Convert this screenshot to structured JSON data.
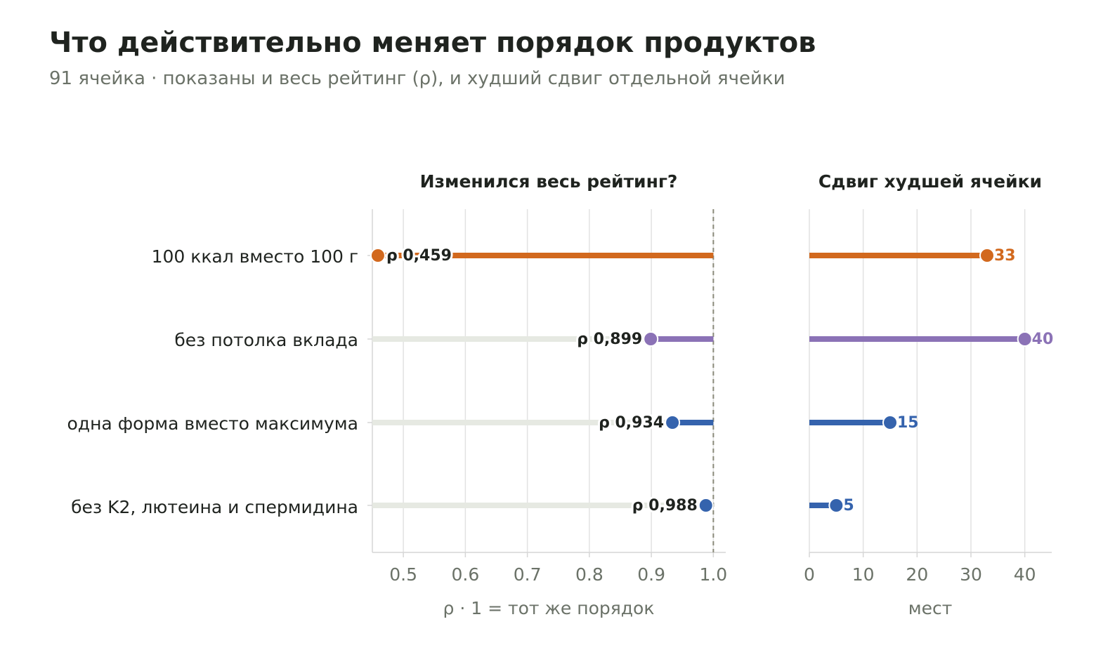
{
  "title": "Что действительно меняет порядок продуктов",
  "subtitle": "91 ячейка · показаны и весь рейтинг (ρ), и худший сдвиг отдельной ячейки",
  "colors": {
    "orange": "#d2691e",
    "purple": "#8b72b6",
    "blue": "#3563ad",
    "track": "#e6e9e2",
    "grid": "#e2e2e2",
    "axis": "#d6d6d6",
    "text": "#1f231f",
    "muted": "#6b7268",
    "reference": "#8a8a7a"
  },
  "chart_data": [
    {
      "type": "lollipop",
      "title": "Изменился весь рейтинг?",
      "xlabel": "ρ · 1 = тот же порядок",
      "xlim": [
        0.45,
        1.02
      ],
      "xticks": [
        0.5,
        0.6,
        0.7,
        0.8,
        0.9,
        1.0
      ],
      "xtick_labels": [
        "0.5",
        "0.6",
        "0.7",
        "0.8",
        "0.9",
        "1.0"
      ],
      "reference_line": 1.0,
      "grid": true,
      "categories": [
        "100 ккал вместо 100 г",
        "без потолка вклада",
        "одна форма вместо максимума",
        "без K2, лютеина и спермидина"
      ],
      "values": [
        0.459,
        0.899,
        0.934,
        0.988
      ],
      "value_labels": [
        "ρ 0,459",
        "ρ 0,899",
        "ρ 0,934",
        "ρ 0,988"
      ],
      "colors": [
        "orange",
        "purple",
        "blue",
        "blue"
      ]
    },
    {
      "type": "lollipop",
      "title": "Сдвиг худшей ячейки",
      "xlabel": "мест",
      "xlim": [
        0,
        45
      ],
      "xticks": [
        0,
        10,
        20,
        30,
        40
      ],
      "xtick_labels": [
        "0",
        "10",
        "20",
        "30",
        "40"
      ],
      "grid": true,
      "categories": [
        "100 ккал вместо 100 г",
        "без потолка вклада",
        "одна форма вместо максимума",
        "без K2, лютеина и спермидина"
      ],
      "values": [
        33,
        40,
        15,
        5
      ],
      "value_labels": [
        "33",
        "40",
        "15",
        "5"
      ],
      "colors": [
        "orange",
        "purple",
        "blue",
        "blue"
      ]
    }
  ]
}
